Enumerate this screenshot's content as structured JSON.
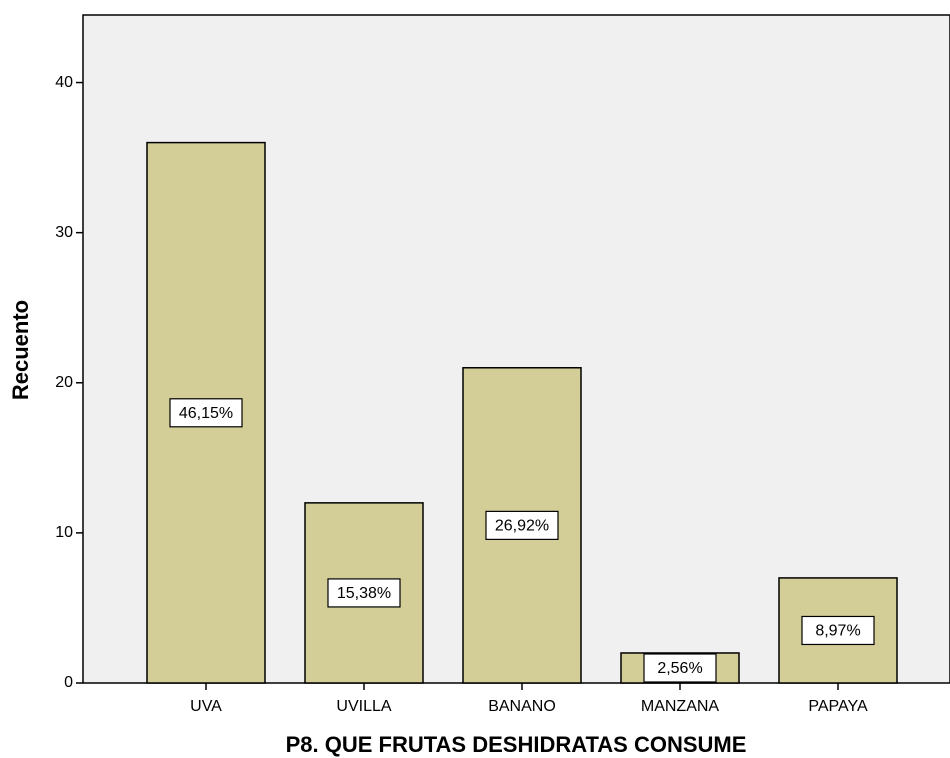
{
  "chart_data": {
    "type": "bar",
    "xlabel": "P8. QUE FRUTAS DESHIDRATAS CONSUME",
    "ylabel": "Recuento",
    "categories": [
      "UVA",
      "UVILLA",
      "BANANO",
      "MANZANA",
      "PAPAYA"
    ],
    "values": [
      36,
      12,
      21,
      2,
      7
    ],
    "percent_values": [
      46.15,
      15.38,
      26.92,
      2.56,
      8.97
    ],
    "percent_labels": [
      "46,15%",
      "15,38%",
      "26,92%",
      "2,56%",
      "8,97%"
    ],
    "color": "#d3ce97",
    "ylim": [
      0,
      44.5
    ],
    "yticks": [
      0,
      10,
      20,
      30,
      40
    ],
    "grid": false
  }
}
